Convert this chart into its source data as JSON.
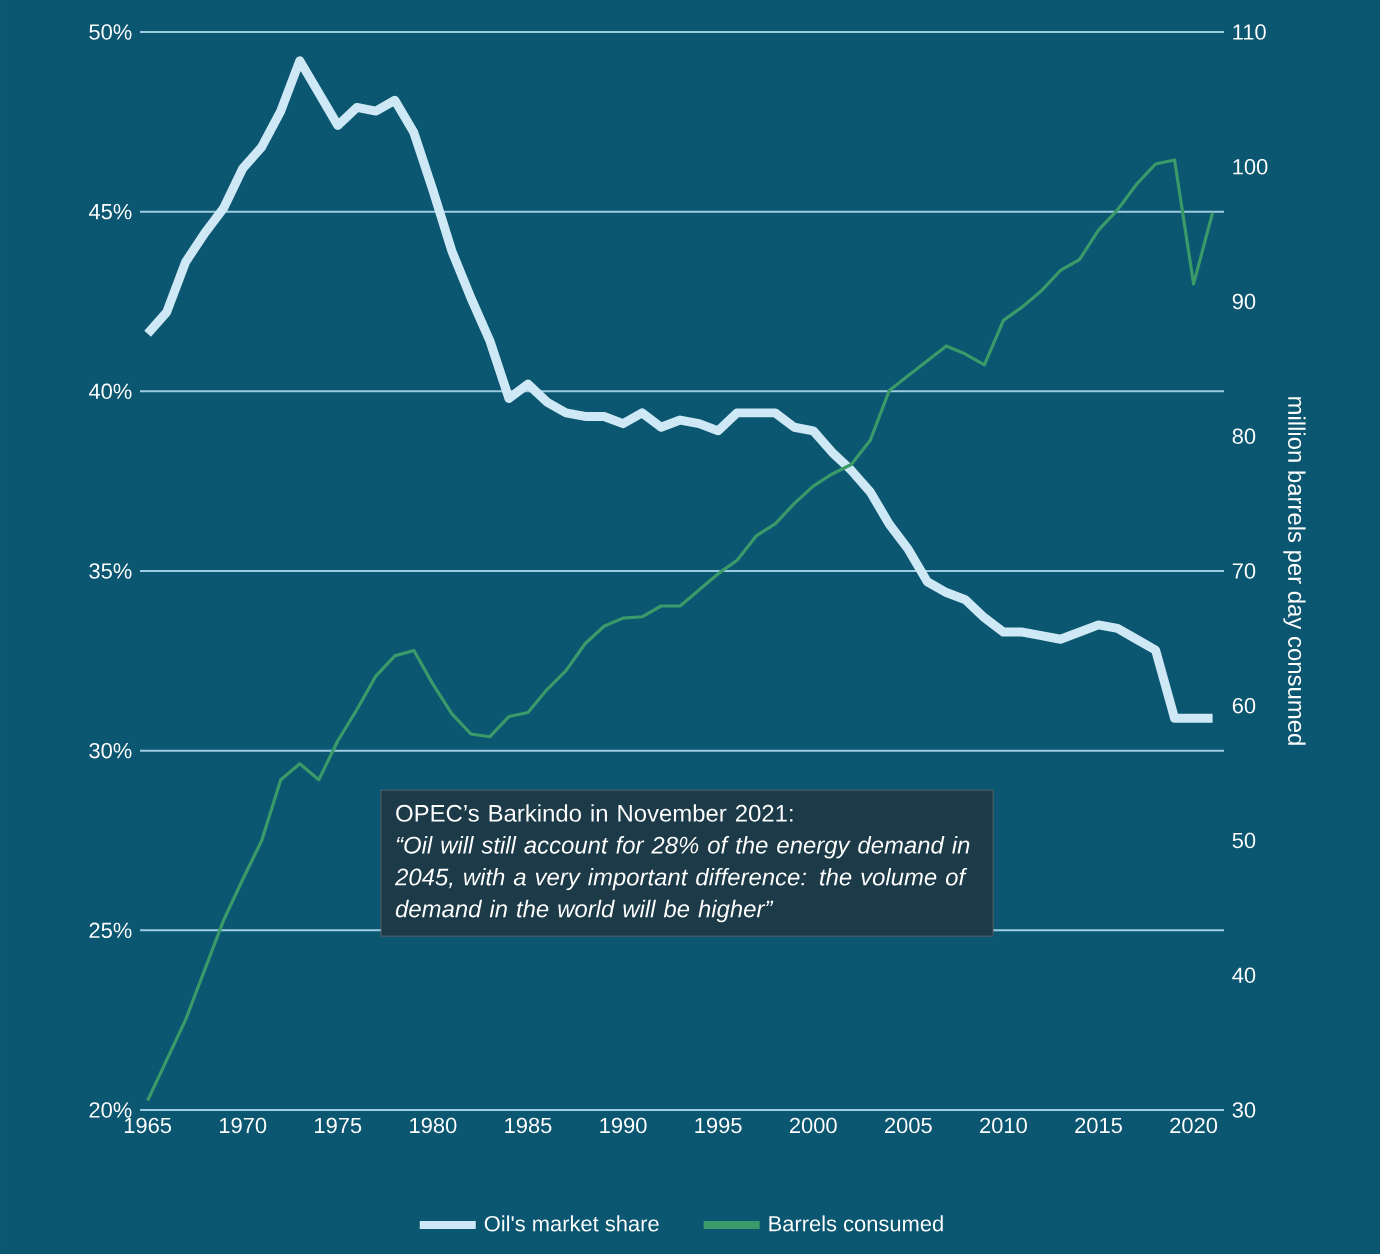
{
  "chart_data": {
    "type": "line",
    "x": [
      1965,
      1966,
      1967,
      1968,
      1969,
      1970,
      1971,
      1972,
      1973,
      1974,
      1975,
      1976,
      1977,
      1978,
      1979,
      1980,
      1981,
      1982,
      1983,
      1984,
      1985,
      1986,
      1987,
      1988,
      1989,
      1990,
      1991,
      1992,
      1993,
      1994,
      1995,
      1996,
      1997,
      1998,
      1999,
      2000,
      2001,
      2002,
      2003,
      2004,
      2005,
      2006,
      2007,
      2008,
      2009,
      2010,
      2011,
      2012,
      2013,
      2014,
      2015,
      2016,
      2017,
      2018,
      2019,
      2020,
      2021
    ],
    "series": [
      {
        "name": "Oil's market share",
        "color": "#cfe8f5",
        "values": [
          41.6,
          42.2,
          43.6,
          44.4,
          45.1,
          46.2,
          46.8,
          47.8,
          49.2,
          48.3,
          47.4,
          47.9,
          47.8,
          48.1,
          47.2,
          45.6,
          43.9,
          42.6,
          41.4,
          39.8,
          40.2,
          39.7,
          39.4,
          39.3,
          39.3,
          39.1,
          39.4,
          39.0,
          39.2,
          39.1,
          38.9,
          39.4,
          39.4,
          39.4,
          39.0,
          38.9,
          38.3,
          37.8,
          37.2,
          36.3,
          35.6,
          34.7,
          34.4,
          34.2,
          33.7,
          33.3,
          33.3,
          33.2,
          33.1,
          33.3,
          33.5,
          33.4,
          33.1,
          32.8,
          30.9,
          30.9,
          30.9
        ]
      },
      {
        "name": "Barrels consumed",
        "color": "#3a9a6a",
        "axis": "y2",
        "values": [
          30.7,
          33.7,
          36.7,
          40.4,
          44.1,
          47.1,
          50.0,
          54.5,
          55.7,
          54.5,
          57.4,
          59.7,
          62.2,
          63.7,
          64.1,
          61.6,
          59.4,
          57.9,
          57.7,
          59.2,
          59.5,
          61.2,
          62.6,
          64.6,
          65.9,
          66.5,
          66.6,
          67.4,
          67.4,
          68.6,
          69.8,
          70.8,
          72.6,
          73.5,
          75.0,
          76.3,
          77.2,
          77.9,
          79.7,
          83.4,
          84.5,
          85.6,
          86.7,
          86.1,
          85.3,
          88.6,
          89.6,
          90.8,
          92.3,
          93.1,
          95.3,
          96.8,
          98.7,
          100.2,
          100.5,
          91.3,
          96.6
        ]
      }
    ],
    "xlim": [
      1964.6,
      2021.6
    ],
    "xticks": [
      1965,
      1970,
      1975,
      1980,
      1985,
      1990,
      1995,
      2000,
      2005,
      2010,
      2015,
      2020
    ],
    "ylim": [
      20,
      50
    ],
    "yticks": [
      {
        "value": 20,
        "label": "20%"
      },
      {
        "value": 25,
        "label": "25%"
      },
      {
        "value": 30,
        "label": "30%"
      },
      {
        "value": 35,
        "label": "35%"
      },
      {
        "value": 40,
        "label": "40%"
      },
      {
        "value": 45,
        "label": "45%"
      },
      {
        "value": 50,
        "label": "50%"
      }
    ],
    "y2lim": [
      30,
      110
    ],
    "y2ticks": [
      30,
      40,
      50,
      60,
      70,
      80,
      90,
      100,
      110
    ],
    "y2label": "million barrels per day consumed",
    "grid": "y",
    "legend": "bottom",
    "annotations": [
      "OPEC’s Barkindo in November 2021:",
      "“Oil will still account for 28% of the energy demand in 2045, with a very important difference: the volume of demand in the world will be higher”"
    ]
  }
}
